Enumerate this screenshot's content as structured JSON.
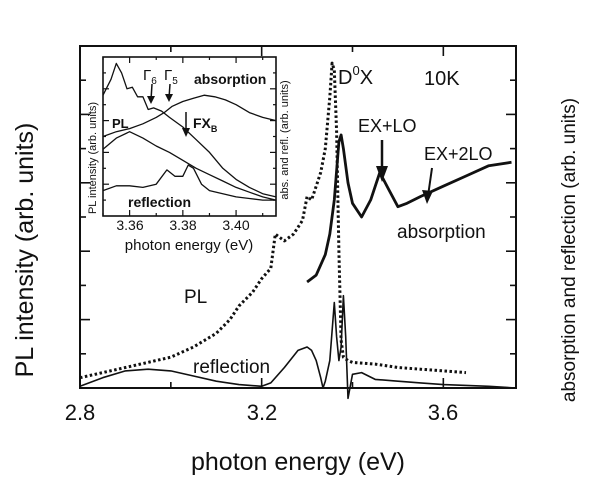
{
  "chart_data": [
    {
      "type": "line",
      "xlabel": "photon energy (eV)",
      "ylabel": "PL intensity (arb. units)",
      "ylabel_right": "absorption and reflection (arb. units)",
      "xlim": [
        2.8,
        3.76
      ],
      "ylim": [
        0,
        10
      ],
      "xticks": [
        2.8,
        3.2,
        3.6
      ],
      "xtick_labels": [
        "2.8",
        "3.2",
        "3.6"
      ],
      "annotations": {
        "d0x": "D",
        "d0x_sup": "0",
        "d0x_tail": "X",
        "temp": "10K",
        "exlo": "EX+LO",
        "ex2lo": "EX+2LO",
        "absorption": "absorption",
        "pl": "PL",
        "reflection": "reflection"
      },
      "series": [
        {
          "name": "PL",
          "style": "dotted",
          "x": [
            2.8,
            2.9,
            3.0,
            3.05,
            3.1,
            3.13,
            3.15,
            3.18,
            3.2,
            3.22,
            3.23,
            3.25,
            3.27,
            3.29,
            3.3,
            3.31,
            3.32,
            3.33,
            3.34,
            3.35,
            3.355,
            3.36,
            3.365,
            3.37,
            3.375,
            3.38,
            3.39,
            3.4,
            3.45,
            3.5,
            3.55,
            3.6,
            3.65
          ],
          "y": [
            0.3,
            0.6,
            0.9,
            1.2,
            1.6,
            2.0,
            2.4,
            2.8,
            3.2,
            3.5,
            4.5,
            4.3,
            4.5,
            4.9,
            5.6,
            5.5,
            5.9,
            6.3,
            7.0,
            8.5,
            9.5,
            9.3,
            7.5,
            4.0,
            1.4,
            0.9,
            0.8,
            0.75,
            0.7,
            0.6,
            0.55,
            0.5,
            0.45
          ]
        },
        {
          "name": "absorption",
          "style": "thick",
          "x": [
            3.3,
            3.32,
            3.34,
            3.35,
            3.36,
            3.37,
            3.375,
            3.38,
            3.39,
            3.4,
            3.42,
            3.44,
            3.46,
            3.48,
            3.5,
            3.52,
            3.55,
            3.6,
            3.65,
            3.7,
            3.75
          ],
          "y": [
            3.1,
            3.3,
            3.9,
            4.5,
            5.5,
            7.2,
            7.4,
            7.0,
            6.0,
            5.4,
            5.0,
            5.5,
            6.3,
            5.8,
            5.3,
            5.4,
            5.6,
            5.9,
            6.2,
            6.5,
            6.6
          ]
        },
        {
          "name": "reflection",
          "style": "thin",
          "x": [
            2.8,
            2.85,
            2.9,
            2.95,
            3.0,
            3.05,
            3.1,
            3.15,
            3.2,
            3.22,
            3.25,
            3.28,
            3.3,
            3.31,
            3.32,
            3.33,
            3.335,
            3.34,
            3.35,
            3.36,
            3.365,
            3.37,
            3.375,
            3.38,
            3.385,
            3.39,
            3.4,
            3.42,
            3.45,
            3.5,
            3.55,
            3.6,
            3.7,
            3.76
          ],
          "y": [
            0.05,
            0.3,
            0.5,
            0.55,
            0.5,
            0.35,
            0.2,
            0.1,
            0.05,
            0.15,
            0.6,
            1.1,
            1.2,
            1.1,
            0.8,
            0.3,
            0.0,
            0.2,
            0.8,
            2.5,
            1.5,
            0.8,
            1.2,
            2.7,
            1.5,
            -0.3,
            0.4,
            0.45,
            0.25,
            0.2,
            0.15,
            0.1,
            0.05,
            0.0
          ]
        }
      ]
    },
    {
      "type": "line",
      "xlabel": "photon energy (eV)",
      "ylabel": "PL intensity (arb. units)",
      "ylabel_right": "abs. and refl. (arb. units)",
      "xlim": [
        3.35,
        3.415
      ],
      "ylim": [
        0,
        10
      ],
      "xticks": [
        3.36,
        3.38,
        3.4
      ],
      "xtick_labels": [
        "3.36",
        "3.38",
        "3.40"
      ],
      "annotations": {
        "g6": "Γ",
        "g6_sub": "6",
        "g5": "Γ",
        "g5_sub": "5",
        "absorption": "absorption",
        "fxb": "FX",
        "fxb_sub": "B",
        "pl": "PL",
        "reflection": "reflection"
      },
      "series": [
        {
          "name": "PL",
          "x": [
            3.35,
            3.353,
            3.355,
            3.357,
            3.359,
            3.361,
            3.363,
            3.365,
            3.367,
            3.369,
            3.372,
            3.375,
            3.38,
            3.385,
            3.39,
            3.395,
            3.4,
            3.405,
            3.41,
            3.415
          ],
          "y": [
            7.6,
            8.6,
            9.6,
            9.0,
            8.0,
            8.1,
            7.5,
            7.5,
            6.7,
            6.8,
            6.6,
            6.2,
            5.6,
            4.8,
            4.0,
            3.0,
            2.3,
            1.8,
            1.4,
            1.2
          ]
        },
        {
          "name": "PL",
          "x": [
            3.35,
            3.355,
            3.36,
            3.365,
            3.37,
            3.375,
            3.38,
            3.385,
            3.39,
            3.395,
            3.4,
            3.405,
            3.41,
            3.415
          ],
          "y": [
            4.2,
            4.9,
            5.3,
            4.9,
            4.4,
            4.0,
            3.5,
            3.0,
            2.6,
            2.2,
            1.8,
            1.5,
            1.2,
            1.0
          ]
        },
        {
          "name": "absorption",
          "x": [
            3.35,
            3.355,
            3.36,
            3.365,
            3.37,
            3.373,
            3.376,
            3.38,
            3.384,
            3.388,
            3.392,
            3.396,
            3.4,
            3.405,
            3.41,
            3.415
          ],
          "y": [
            5.0,
            5.3,
            5.5,
            5.8,
            6.2,
            6.5,
            6.9,
            7.2,
            7.4,
            7.6,
            7.5,
            7.3,
            7.0,
            6.5,
            6.2,
            6.0
          ]
        },
        {
          "name": "reflection",
          "x": [
            3.35,
            3.355,
            3.36,
            3.365,
            3.37,
            3.374,
            3.377,
            3.38,
            3.382,
            3.384,
            3.387,
            3.39,
            3.395,
            3.4,
            3.405,
            3.41,
            3.415
          ],
          "y": [
            1.6,
            1.9,
            1.9,
            1.8,
            2.0,
            2.9,
            2.5,
            2.5,
            3.2,
            3.0,
            2.0,
            1.6,
            1.4,
            1.2,
            1.1,
            1.0,
            1.0
          ]
        }
      ]
    }
  ]
}
